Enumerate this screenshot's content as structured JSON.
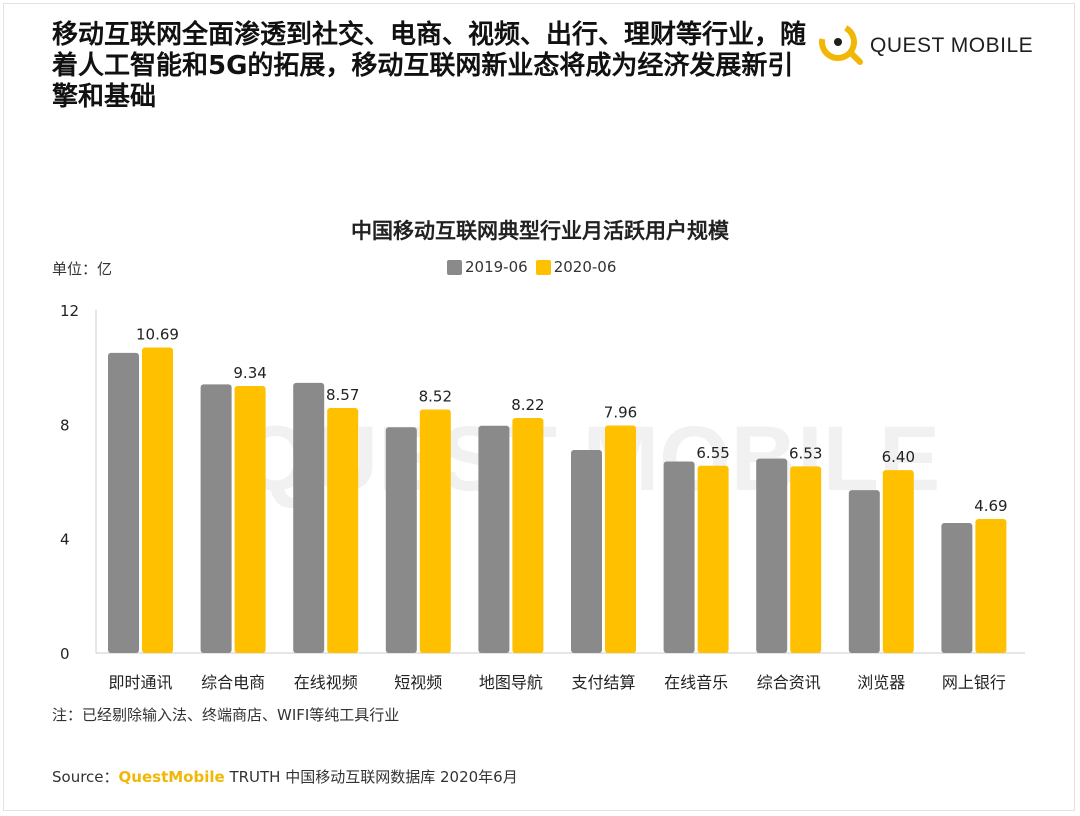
{
  "headline": "移动互联网全面渗透到社交、电商、视频、出行、理财等行业，随着人工智能和5G的拓展，移动互联网新业态将成为经济发展新引擎和基础",
  "logo": {
    "text": "QUEST MOBILE",
    "watermark": "QUEST MOBILE"
  },
  "unit_label": "单位：亿",
  "note": "注：已经剔除输入法、终端商店、WIFI等纯工具行业",
  "source": {
    "prefix": "Source：",
    "brand": "QuestMobile",
    "rest": " TRUTH 中国移动互联网数据库 2020年6月"
  },
  "colors": {
    "gray": "#8a8a8a",
    "yellow": "#ffc000",
    "brand_yellow": "#f2b705"
  },
  "chart_data": {
    "type": "bar",
    "title": "中国移动互联网典型行业月活跃用户规模",
    "ylabel": "单位：亿",
    "ylim": [
      0,
      12
    ],
    "yticks": [
      0,
      4,
      8,
      12
    ],
    "grid": false,
    "legend_position": "top-center",
    "categories": [
      "即时通讯",
      "综合电商",
      "在线视频",
      "短视频",
      "地图导航",
      "支付结算",
      "在线音乐",
      "综合资讯",
      "浏览器",
      "网上银行"
    ],
    "series": [
      {
        "name": "2019-06",
        "color": "#8a8a8a",
        "values": [
          10.5,
          9.4,
          9.45,
          7.9,
          7.95,
          7.1,
          6.7,
          6.8,
          5.7,
          4.55
        ],
        "labels": [
          "",
          "",
          "",
          "",
          "",
          "",
          "",
          "",
          "",
          ""
        ]
      },
      {
        "name": "2020-06",
        "color": "#ffc000",
        "values": [
          10.69,
          9.34,
          8.57,
          8.52,
          8.22,
          7.96,
          6.55,
          6.53,
          6.4,
          4.69
        ],
        "labels": [
          "10.69",
          "9.34",
          "8.57",
          "8.52",
          "8.22",
          "7.96",
          "6.55",
          "6.53",
          "6.40",
          "4.69"
        ]
      }
    ]
  }
}
